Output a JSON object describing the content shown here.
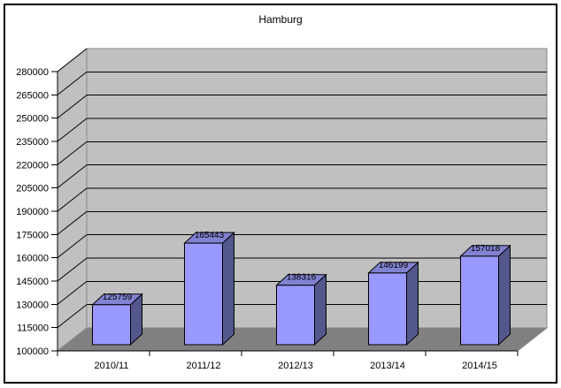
{
  "window": {
    "background": "#ffffff",
    "frame_border_color": "#000000"
  },
  "chart_data": {
    "type": "bar",
    "style": "3d-column",
    "title": "Hamburg",
    "categories": [
      "2010/11",
      "2011/12",
      "2012/13",
      "2013/14",
      "2014/15"
    ],
    "values": [
      125759,
      165443,
      138316,
      146199,
      157018
    ],
    "data_labels": [
      "125759",
      "165443",
      "138316",
      "146199",
      "157018"
    ],
    "xlabel": "",
    "ylabel": "",
    "ylim": [
      100000,
      280000
    ],
    "ytick_step": 15000,
    "ytick_labels": [
      "280000",
      "265000",
      "250000",
      "235000",
      "220000",
      "205000",
      "190000",
      "175000",
      "160000",
      "145000",
      "130000",
      "115000",
      "100000"
    ],
    "grid": true,
    "legend": "none",
    "colors": {
      "bar_front": "#9999ff",
      "bar_top": "#8282d2",
      "bar_side": "#54578c",
      "bar_edge": "#000000",
      "wall": "#c0c0c0",
      "wall_edge": "#8a8a8a",
      "floor": "#808080",
      "gridline": "#000000",
      "axis": "#000000",
      "text": "#000000",
      "background": "#ffffff"
    }
  }
}
